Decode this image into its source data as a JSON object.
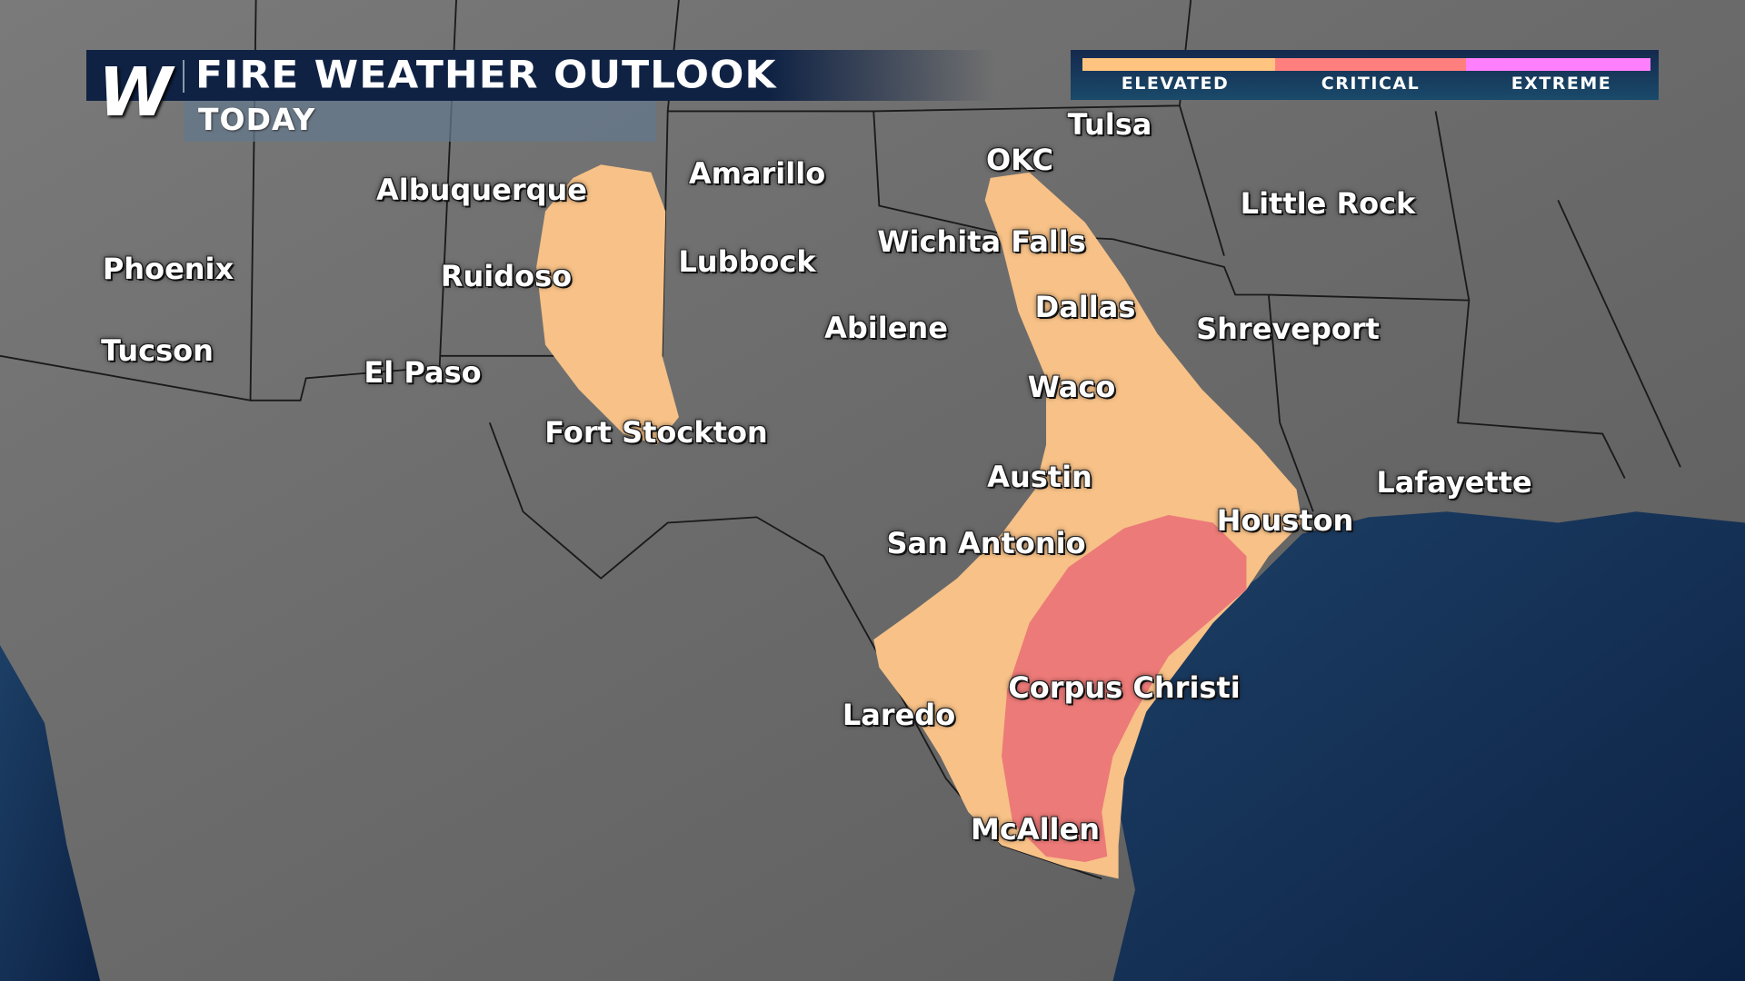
{
  "header": {
    "logo": "W",
    "title": "FIRE WEATHER OUTLOOK",
    "subtitle": "TODAY"
  },
  "legend": {
    "items": [
      {
        "label": "ELEVATED",
        "color": "#ffc580"
      },
      {
        "label": "CRITICAL",
        "color": "#ff7f7f"
      },
      {
        "label": "EXTREME",
        "color": "#ff80ff"
      }
    ]
  },
  "map": {
    "colors": {
      "land": "#6e6e6e",
      "ocean": "#12305a",
      "elevated": "#f7c187",
      "critical": "#ec7a78"
    },
    "risk_areas": [
      {
        "category": "ELEVATED",
        "region": "eastern New Mexico / west Texas"
      },
      {
        "category": "ELEVATED",
        "region": "Oklahoma to south Texas"
      },
      {
        "category": "CRITICAL",
        "region": "south Texas coast"
      }
    ],
    "cities": [
      "Tulsa",
      "OKC",
      "Amarillo",
      "Albuquerque",
      "Little Rock",
      "Wichita Falls",
      "Lubbock",
      "Phoenix",
      "Ruidoso",
      "Dallas",
      "Abilene",
      "Shreveport",
      "Tucson",
      "El Paso",
      "Waco",
      "Fort Stockton",
      "Austin",
      "Lafayette",
      "Houston",
      "San Antonio",
      "Corpus Christi",
      "Laredo",
      "McAllen"
    ]
  }
}
